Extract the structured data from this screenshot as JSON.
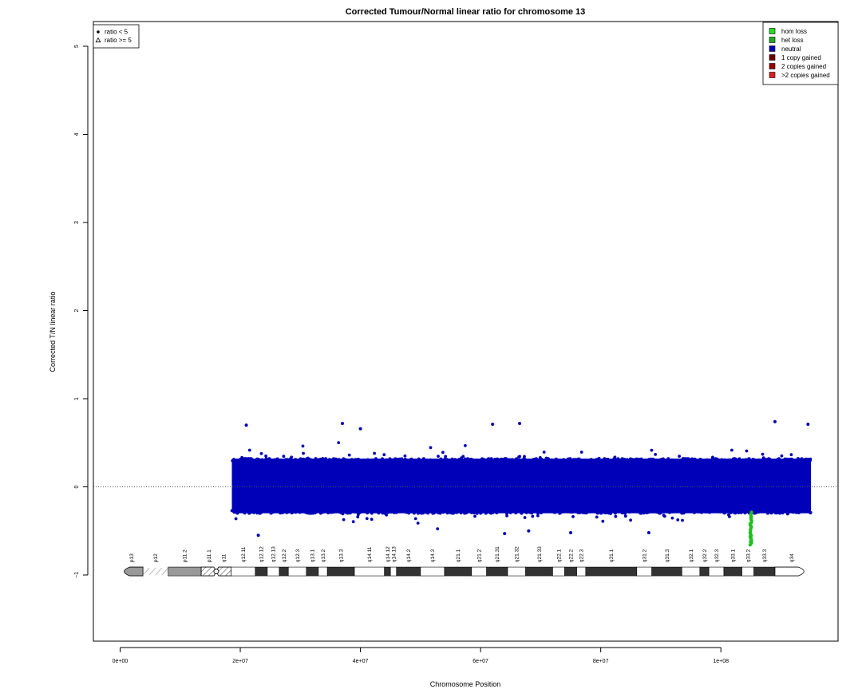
{
  "chart_data": {
    "type": "scatter",
    "title": "Corrected Tumour/Normal linear ratio for chromosome  13",
    "xlabel": "Chromosome Position",
    "ylabel": "Corrected T/N linear ratio",
    "xlim": [
      -5000000,
      120000000
    ],
    "ylim": [
      -1.8,
      5.3
    ],
    "x_ticks": [
      {
        "value": 0,
        "label": "0e+00"
      },
      {
        "value": 20000000,
        "label": "2e+07"
      },
      {
        "value": 40000000,
        "label": "4e+07"
      },
      {
        "value": 60000000,
        "label": "6e+07"
      },
      {
        "value": 80000000,
        "label": "8e+07"
      },
      {
        "value": 100000000,
        "label": "1e+08"
      }
    ],
    "y_ticks": [
      {
        "value": -1,
        "label": "−1"
      },
      {
        "value": 0,
        "label": "0"
      },
      {
        "value": 1,
        "label": "1"
      },
      {
        "value": 2,
        "label": "2"
      },
      {
        "value": 3,
        "label": "3"
      },
      {
        "value": 4,
        "label": "4"
      },
      {
        "value": 5,
        "label": "5"
      }
    ],
    "reference_line": {
      "y": 0,
      "style": "dotted"
    },
    "series": [
      {
        "name": "neutral",
        "color": "#0000b8",
        "x_range": [
          18600000,
          115000000
        ],
        "y_core": [
          -0.3,
          0.32
        ],
        "y_extremes": [
          -0.55,
          0.74
        ],
        "outliers": [
          {
            "x": 21000000,
            "y": 0.7
          },
          {
            "x": 37000000,
            "y": 0.72
          },
          {
            "x": 40000000,
            "y": 0.66
          },
          {
            "x": 62000000,
            "y": 0.71
          },
          {
            "x": 66500000,
            "y": 0.72
          },
          {
            "x": 109000000,
            "y": 0.74
          },
          {
            "x": 114500000,
            "y": 0.71
          },
          {
            "x": 23000000,
            "y": -0.55
          },
          {
            "x": 64000000,
            "y": -0.53
          },
          {
            "x": 68000000,
            "y": -0.5
          },
          {
            "x": 75000000,
            "y": -0.52
          },
          {
            "x": 88000000,
            "y": -0.52
          }
        ]
      },
      {
        "name": "het loss",
        "color": "#1fbf1f",
        "x_range": [
          104900000,
          105100000
        ],
        "y_range": [
          -0.66,
          -0.28
        ]
      }
    ],
    "point_legend": {
      "placement": "top-left",
      "entries": [
        {
          "symbol": "dot",
          "label": "ratio < 5"
        },
        {
          "symbol": "triangle",
          "label": "ratio >= 5"
        }
      ]
    },
    "state_legend": {
      "placement": "top-right",
      "entries": [
        {
          "label": "hom loss",
          "color": "#22dd22"
        },
        {
          "label": "het loss",
          "color": "#1faa1f"
        },
        {
          "label": "neutral",
          "color": "#0000b8"
        },
        {
          "label": "1 copy gained",
          "color": "#6b0000"
        },
        {
          "label": "2 copies gained",
          "color": "#990000"
        },
        {
          "label": ">2 copies gained",
          "color": "#dd2222"
        }
      ]
    },
    "ideogram": {
      "y": -0.96,
      "bands": [
        {
          "name": "p13",
          "start": 0,
          "end": 3800000,
          "stain": "gvar",
          "shape": "cap-left"
        },
        {
          "name": "p12",
          "start": 3800000,
          "end": 8000000,
          "stain": "stalk"
        },
        {
          "name": "p11.2",
          "start": 8000000,
          "end": 13500000,
          "stain": "gvar"
        },
        {
          "name": "p11.1",
          "start": 13500000,
          "end": 16000000,
          "stain": "acen-p"
        },
        {
          "name": "q11",
          "start": 16000000,
          "end": 18500000,
          "stain": "acen-q"
        },
        {
          "name": "q12.11",
          "start": 18500000,
          "end": 22500000,
          "stain": "gneg"
        },
        {
          "name": "q12.12",
          "start": 22500000,
          "end": 24500000,
          "stain": "gpos"
        },
        {
          "name": "q12.13",
          "start": 24500000,
          "end": 26500000,
          "stain": "gneg"
        },
        {
          "name": "q12.2",
          "start": 26500000,
          "end": 28000000,
          "stain": "gpos"
        },
        {
          "name": "q12.3",
          "start": 28000000,
          "end": 31000000,
          "stain": "gneg"
        },
        {
          "name": "q13.1",
          "start": 31000000,
          "end": 33000000,
          "stain": "gpos"
        },
        {
          "name": "q13.2",
          "start": 33000000,
          "end": 34500000,
          "stain": "gneg"
        },
        {
          "name": "q13.3",
          "start": 34500000,
          "end": 39000000,
          "stain": "gpos"
        },
        {
          "name": "q14.11",
          "start": 39000000,
          "end": 44000000,
          "stain": "gneg"
        },
        {
          "name": "q14.12",
          "start": 44000000,
          "end": 45000000,
          "stain": "gpos"
        },
        {
          "name": "q14.13",
          "start": 45000000,
          "end": 46000000,
          "stain": "gneg"
        },
        {
          "name": "q14.2",
          "start": 46000000,
          "end": 50000000,
          "stain": "gpos"
        },
        {
          "name": "q14.3",
          "start": 50000000,
          "end": 54000000,
          "stain": "gneg"
        },
        {
          "name": "q21.1",
          "start": 54000000,
          "end": 58500000,
          "stain": "gpos"
        },
        {
          "name": "q21.2",
          "start": 58500000,
          "end": 61000000,
          "stain": "gneg"
        },
        {
          "name": "q21.31",
          "start": 61000000,
          "end": 64500000,
          "stain": "gpos"
        },
        {
          "name": "q21.32",
          "start": 64500000,
          "end": 67500000,
          "stain": "gneg"
        },
        {
          "name": "q21.33",
          "start": 67500000,
          "end": 72000000,
          "stain": "gpos"
        },
        {
          "name": "q22.1",
          "start": 72000000,
          "end": 74000000,
          "stain": "gneg"
        },
        {
          "name": "q22.2",
          "start": 74000000,
          "end": 76000000,
          "stain": "gpos"
        },
        {
          "name": "q22.3",
          "start": 76000000,
          "end": 77500000,
          "stain": "gneg"
        },
        {
          "name": "q31.1",
          "start": 77500000,
          "end": 86000000,
          "stain": "gpos"
        },
        {
          "name": "q31.2",
          "start": 86000000,
          "end": 88500000,
          "stain": "gneg"
        },
        {
          "name": "q31.3",
          "start": 88500000,
          "end": 93500000,
          "stain": "gpos"
        },
        {
          "name": "q32.1",
          "start": 93500000,
          "end": 96500000,
          "stain": "gneg"
        },
        {
          "name": "q32.2",
          "start": 96500000,
          "end": 98000000,
          "stain": "gpos"
        },
        {
          "name": "q32.3",
          "start": 98000000,
          "end": 100500000,
          "stain": "gneg"
        },
        {
          "name": "q33.1",
          "start": 100500000,
          "end": 103500000,
          "stain": "gpos"
        },
        {
          "name": "q33.2",
          "start": 103500000,
          "end": 105500000,
          "stain": "gneg"
        },
        {
          "name": "q33.3",
          "start": 105500000,
          "end": 109000000,
          "stain": "gpos"
        },
        {
          "name": "q34",
          "start": 109000000,
          "end": 114500000,
          "stain": "gneg",
          "shape": "cap-right"
        }
      ]
    }
  }
}
